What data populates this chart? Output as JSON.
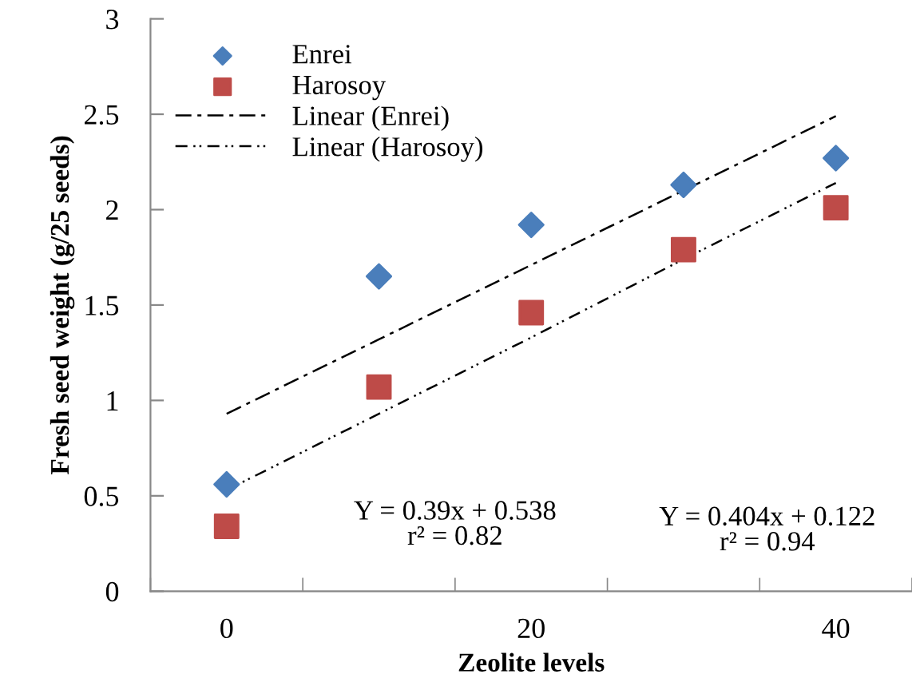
{
  "chart_data": {
    "type": "scatter",
    "xlabel": "Zeolite levels",
    "ylabel": "Fresh seed weight (g/25 seeds)",
    "categories": [
      "0",
      null,
      "20",
      null,
      "40"
    ],
    "series": [
      {
        "name": "Enrei",
        "marker": "diamond",
        "color": "#4a7ebb",
        "values": [
          0.56,
          1.65,
          1.92,
          2.13,
          2.27
        ]
      },
      {
        "name": "Harosoy",
        "marker": "square",
        "color": "#be4b48",
        "values": [
          0.34,
          1.07,
          1.46,
          1.79,
          2.01
        ]
      },
      {
        "name": "Linear (Enrei)",
        "type": "line",
        "line_style": "dashed",
        "color": "#000000",
        "values": [
          0.93,
          1.32,
          1.71,
          2.1,
          2.49
        ]
      },
      {
        "name": "Linear (Harosoy)",
        "type": "line",
        "line_style": "dotted",
        "color": "#000000",
        "values": [
          0.53,
          0.93,
          1.33,
          1.74,
          2.14
        ]
      }
    ],
    "ylim": [
      0,
      3
    ],
    "yticks": [
      0,
      0.5,
      1,
      1.5,
      2,
      2.5,
      3
    ],
    "grid": false,
    "legend": "top left",
    "annotations": [
      "Y = 0.39x + 0.538\nr² = 0.82",
      "Y = 0.404x + 0.122\nr² = 0.94"
    ]
  }
}
